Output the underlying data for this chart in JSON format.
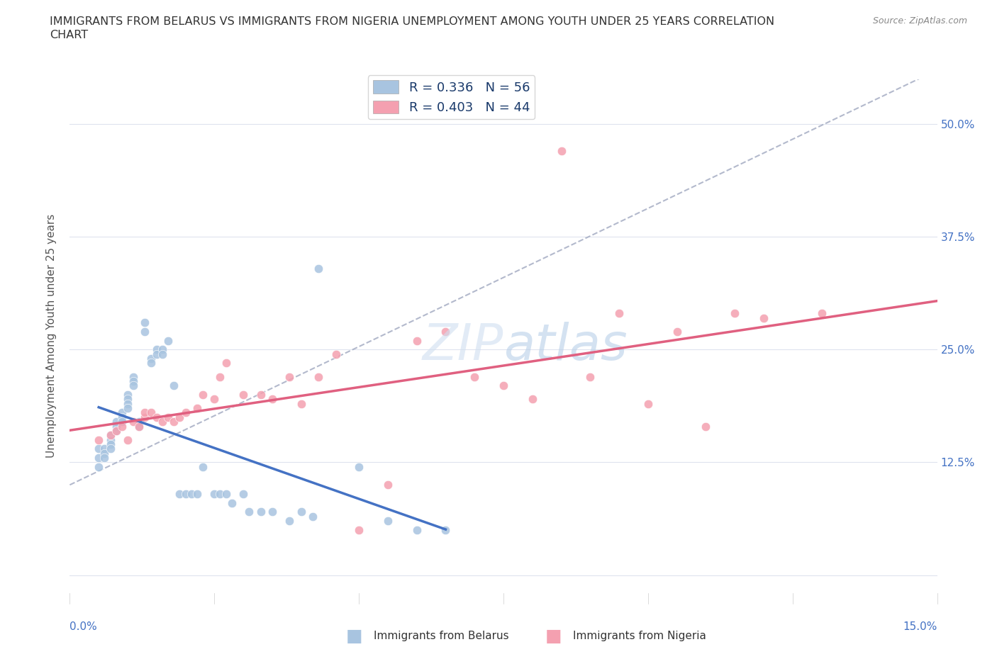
{
  "title_line1": "IMMIGRANTS FROM BELARUS VS IMMIGRANTS FROM NIGERIA UNEMPLOYMENT AMONG YOUTH UNDER 25 YEARS CORRELATION",
  "title_line2": "CHART",
  "source": "Source: ZipAtlas.com",
  "ylabel": "Unemployment Among Youth under 25 years",
  "ytick_labels": [
    "",
    "12.5%",
    "25.0%",
    "37.5%",
    "50.0%"
  ],
  "ytick_values": [
    0.0,
    0.125,
    0.25,
    0.375,
    0.5
  ],
  "xlim": [
    0.0,
    0.15
  ],
  "ylim": [
    -0.02,
    0.55
  ],
  "legend_r1": "R = 0.336   N = 56",
  "legend_r2": "R = 0.403   N = 44",
  "belarus_color": "#a8c4e0",
  "nigeria_color": "#f4a0b0",
  "line_belarus_color": "#4472c4",
  "line_nigeria_color": "#e06080",
  "dashed_color": "#a0a8c0",
  "belarus_x": [
    0.005,
    0.005,
    0.005,
    0.006,
    0.006,
    0.006,
    0.007,
    0.007,
    0.007,
    0.007,
    0.008,
    0.008,
    0.008,
    0.009,
    0.009,
    0.009,
    0.01,
    0.01,
    0.01,
    0.01,
    0.011,
    0.011,
    0.011,
    0.012,
    0.012,
    0.013,
    0.013,
    0.014,
    0.014,
    0.015,
    0.015,
    0.016,
    0.016,
    0.017,
    0.018,
    0.019,
    0.02,
    0.021,
    0.022,
    0.023,
    0.025,
    0.026,
    0.027,
    0.028,
    0.03,
    0.031,
    0.033,
    0.035,
    0.038,
    0.04,
    0.042,
    0.043,
    0.05,
    0.055,
    0.06,
    0.065
  ],
  "belarus_y": [
    0.14,
    0.13,
    0.12,
    0.14,
    0.135,
    0.13,
    0.155,
    0.15,
    0.145,
    0.14,
    0.17,
    0.165,
    0.16,
    0.18,
    0.175,
    0.17,
    0.2,
    0.195,
    0.19,
    0.185,
    0.22,
    0.215,
    0.21,
    0.17,
    0.165,
    0.28,
    0.27,
    0.24,
    0.235,
    0.25,
    0.245,
    0.25,
    0.245,
    0.26,
    0.21,
    0.09,
    0.09,
    0.09,
    0.09,
    0.12,
    0.09,
    0.09,
    0.09,
    0.08,
    0.09,
    0.07,
    0.07,
    0.07,
    0.06,
    0.07,
    0.065,
    0.34,
    0.12,
    0.06,
    0.05,
    0.05
  ],
  "nigeria_x": [
    0.005,
    0.007,
    0.008,
    0.009,
    0.01,
    0.011,
    0.012,
    0.013,
    0.013,
    0.014,
    0.015,
    0.016,
    0.017,
    0.018,
    0.019,
    0.02,
    0.022,
    0.023,
    0.025,
    0.026,
    0.027,
    0.03,
    0.033,
    0.035,
    0.038,
    0.04,
    0.043,
    0.046,
    0.05,
    0.055,
    0.06,
    0.065,
    0.07,
    0.075,
    0.08,
    0.085,
    0.09,
    0.095,
    0.1,
    0.105,
    0.11,
    0.115,
    0.12,
    0.13
  ],
  "nigeria_y": [
    0.15,
    0.155,
    0.16,
    0.165,
    0.15,
    0.17,
    0.165,
    0.175,
    0.18,
    0.18,
    0.175,
    0.17,
    0.175,
    0.17,
    0.175,
    0.18,
    0.185,
    0.2,
    0.195,
    0.22,
    0.235,
    0.2,
    0.2,
    0.195,
    0.22,
    0.19,
    0.22,
    0.245,
    0.05,
    0.1,
    0.26,
    0.27,
    0.22,
    0.21,
    0.195,
    0.47,
    0.22,
    0.29,
    0.19,
    0.27,
    0.165,
    0.29,
    0.285,
    0.29
  ]
}
